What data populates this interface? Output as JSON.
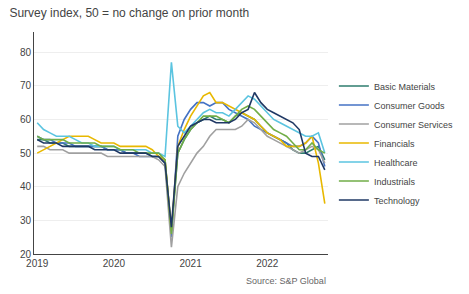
{
  "chart_data": {
    "type": "line",
    "title": "Survey index, 50 = no change on prior month",
    "annotations": [
      "Source: S&P Global"
    ],
    "categories": [
      "2019",
      null,
      null,
      null,
      null,
      null,
      null,
      null,
      null,
      null,
      null,
      null,
      "2020",
      null,
      null,
      null,
      null,
      null,
      null,
      null,
      null,
      null,
      null,
      null,
      "2021",
      null,
      null,
      null,
      null,
      null,
      null,
      null,
      null,
      null,
      null,
      null,
      "2022",
      null,
      null,
      null,
      null,
      null,
      null,
      null,
      null,
      null
    ],
    "series": [
      {
        "name": "Basic Materials",
        "color": "#2e7d6e",
        "values": [
          54,
          54,
          53,
          53,
          53,
          52,
          52,
          52,
          52,
          52,
          52,
          51,
          51,
          51,
          50,
          50,
          50,
          50,
          49,
          49,
          48,
          27,
          50,
          54,
          57,
          59,
          60,
          61,
          60,
          60,
          59,
          61,
          62,
          61,
          60,
          58,
          56,
          55,
          54,
          53,
          51,
          50,
          50,
          51,
          52,
          48
        ]
      },
      {
        "name": "Consumer Goods",
        "color": "#4472c4",
        "values": [
          55,
          54,
          54,
          53,
          53,
          53,
          52,
          52,
          52,
          52,
          52,
          51,
          51,
          51,
          50,
          50,
          49,
          49,
          49,
          49,
          47,
          25,
          55,
          60,
          63,
          65,
          65,
          64,
          65,
          65,
          63,
          62,
          61,
          60,
          58,
          57,
          56,
          55,
          54,
          53,
          52,
          52,
          53,
          55,
          53,
          46
        ]
      },
      {
        "name": "Consumer Services",
        "color": "#a0a0a0",
        "values": [
          52,
          52,
          51,
          51,
          51,
          50,
          50,
          50,
          50,
          50,
          50,
          49,
          49,
          49,
          49,
          49,
          49,
          49,
          49,
          48,
          46,
          22,
          40,
          44,
          47,
          50,
          52,
          55,
          57,
          57,
          57,
          57,
          58,
          60,
          59,
          57,
          55,
          54,
          53,
          52,
          51,
          50,
          51,
          52,
          51,
          47
        ]
      },
      {
        "name": "Financials",
        "color": "#e8b800",
        "values": [
          50,
          51,
          52,
          53,
          54,
          55,
          55,
          55,
          55,
          54,
          53,
          53,
          53,
          52,
          52,
          52,
          52,
          52,
          51,
          49,
          48,
          27,
          52,
          57,
          61,
          64,
          67,
          68,
          65,
          65,
          64,
          63,
          62,
          61,
          60,
          58,
          56,
          55,
          54,
          52,
          52,
          52,
          53,
          55,
          47,
          35
        ]
      },
      {
        "name": "Healthcare",
        "color": "#5bc4e0",
        "values": [
          59,
          57,
          56,
          55,
          55,
          55,
          54,
          53,
          53,
          52,
          52,
          52,
          52,
          51,
          51,
          51,
          51,
          51,
          50,
          50,
          49,
          77,
          58,
          56,
          58,
          60,
          62,
          63,
          62,
          62,
          61,
          63,
          65,
          67,
          66,
          64,
          62,
          60,
          59,
          58,
          57,
          56,
          55,
          55,
          56,
          50
        ]
      },
      {
        "name": "Industrials",
        "color": "#70ad47",
        "values": [
          55,
          54,
          54,
          54,
          54,
          53,
          53,
          53,
          53,
          53,
          52,
          52,
          52,
          51,
          51,
          51,
          50,
          50,
          50,
          50,
          48,
          26,
          50,
          54,
          57,
          59,
          61,
          61,
          61,
          60,
          59,
          61,
          63,
          64,
          63,
          61,
          59,
          57,
          56,
          55,
          53,
          51,
          51,
          53,
          51,
          50
        ]
      },
      {
        "name": "Technology",
        "color": "#1f3864",
        "values": [
          54,
          53,
          53,
          53,
          52,
          52,
          52,
          52,
          52,
          51,
          51,
          51,
          51,
          50,
          50,
          50,
          50,
          50,
          49,
          49,
          47,
          28,
          52,
          55,
          58,
          59,
          60,
          60,
          59,
          59,
          59,
          60,
          62,
          63,
          68,
          65,
          63,
          62,
          61,
          60,
          59,
          57,
          50,
          49,
          49,
          45
        ]
      }
    ],
    "ylim": [
      20,
      86
    ],
    "yticks": [
      20,
      30,
      40,
      50,
      60,
      70,
      80
    ],
    "grid": "y",
    "legend": "right"
  }
}
